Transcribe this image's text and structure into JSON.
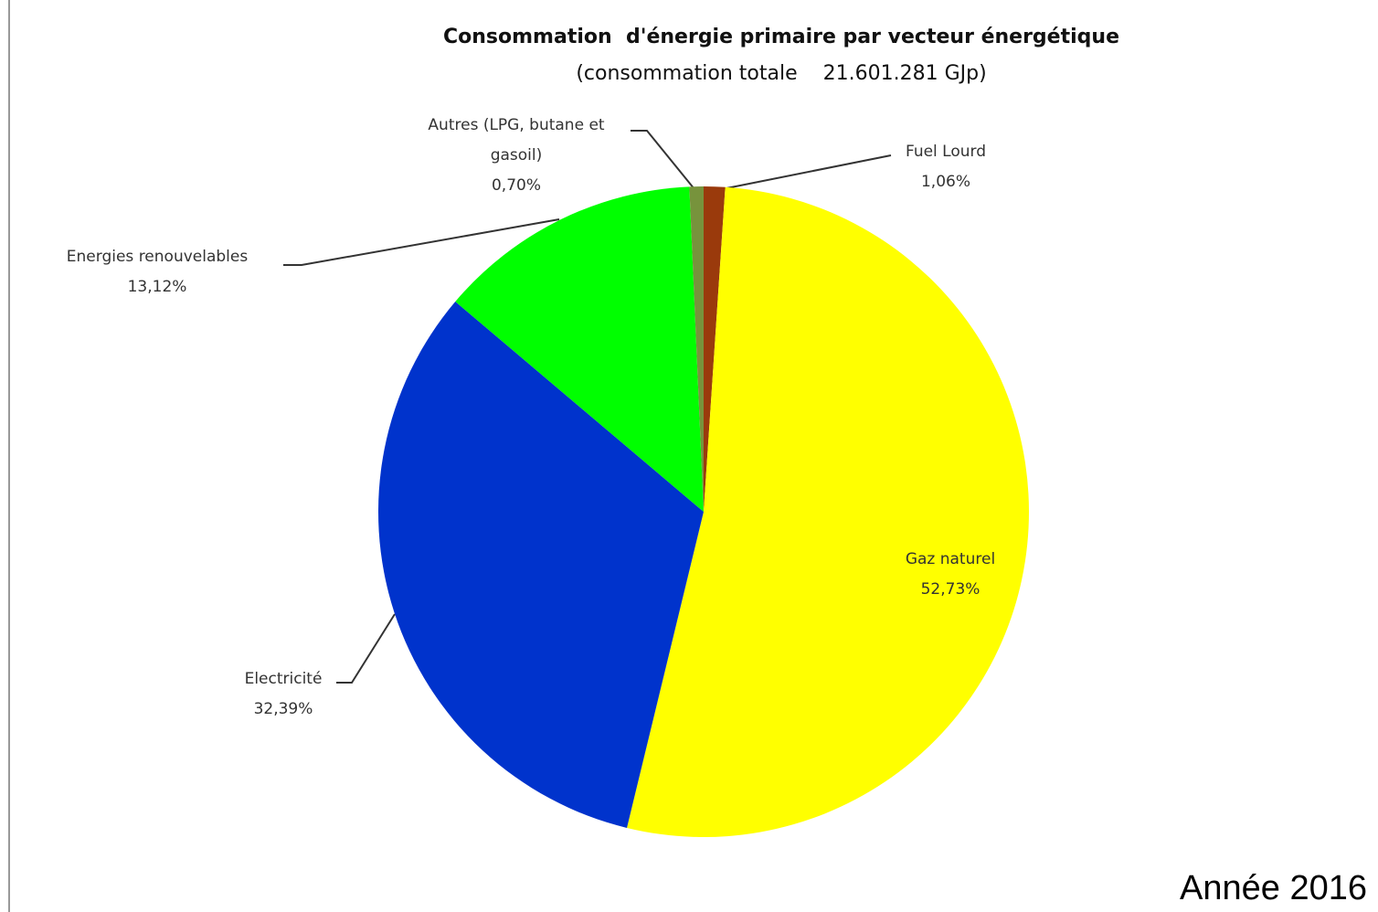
{
  "chart_data": {
    "type": "pie",
    "title": "Consommation  d'énergie primaire par vecteur énergétique",
    "subtitle": "(consommation totale    21.601.281 GJp)",
    "categories": [
      "Fuel Lourd",
      "Gaz naturel",
      "Electricité",
      "Energies renouvelables",
      "Autres (LPG, butane et gasoil)"
    ],
    "values": [
      1.06,
      52.73,
      32.39,
      13.12,
      0.7
    ],
    "value_labels": [
      "1,06%",
      "52,73%",
      "32,39%",
      "13,12%",
      "0,70%"
    ],
    "colors": [
      "#9a3a0c",
      "#ffff00",
      "#0033cc",
      "#00ff00",
      "#77933c"
    ],
    "annotation": "Année 2016"
  }
}
